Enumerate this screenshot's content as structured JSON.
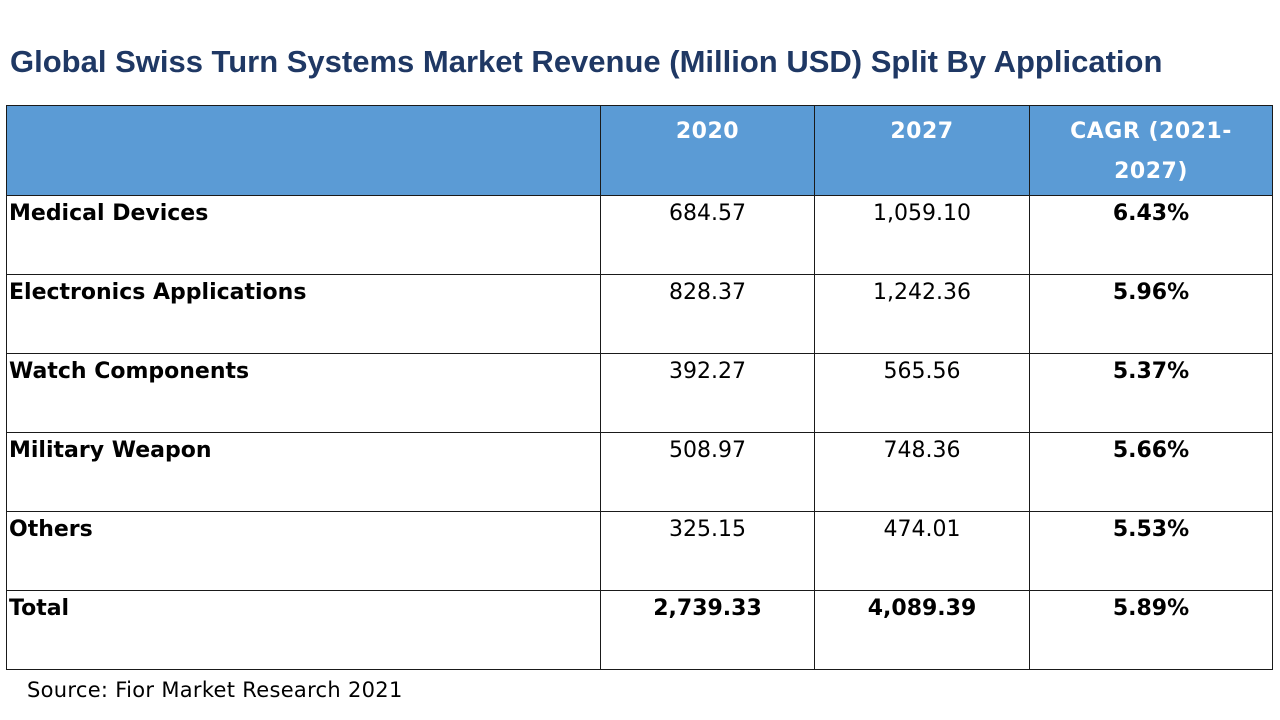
{
  "chart_data": {
    "type": "table",
    "title": "Global Swiss Turn Systems Market Revenue (Million USD) Split By Application",
    "columns": [
      "",
      "2020",
      "2027",
      "CAGR (2021-2027)"
    ],
    "header": {
      "col_2020": "2020",
      "col_2027": "2027",
      "col_cagr_line1": "CAGR (2021-",
      "col_cagr_line2": "2027)"
    },
    "rows": [
      {
        "application": "Medical Devices",
        "v2020": "684.57",
        "v2027": "1,059.10",
        "cagr": "6.43%"
      },
      {
        "application": "Electronics Applications",
        "v2020": "828.37",
        "v2027": "1,242.36",
        "cagr": "5.96%"
      },
      {
        "application": "Watch Components",
        "v2020": "392.27",
        "v2027": "565.56",
        "cagr": "5.37%"
      },
      {
        "application": "Military Weapon",
        "v2020": "508.97",
        "v2027": "748.36",
        "cagr": "5.66%"
      },
      {
        "application": "Others",
        "v2020": "325.15",
        "v2027": "474.01",
        "cagr": "5.53%"
      }
    ],
    "total": {
      "application": "Total",
      "v2020": "2,739.33",
      "v2027": "4,089.39",
      "cagr": "5.89%"
    },
    "source": "Source: Fior Market Research 2021"
  },
  "colors": {
    "title": "#1f3864",
    "header_bg": "#5b9bd5",
    "header_text": "#ffffff"
  }
}
